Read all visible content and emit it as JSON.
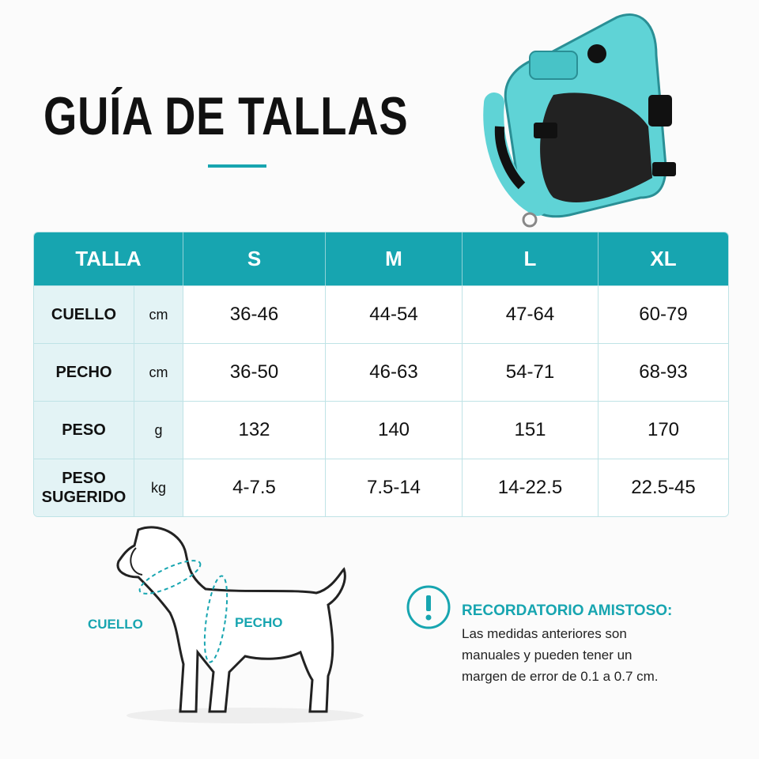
{
  "title": "GUÍA DE TALLAS",
  "table": {
    "header": [
      "TALLA",
      "S",
      "M",
      "L",
      "XL"
    ],
    "rows": [
      {
        "label": "CUELLO",
        "unit": "cm",
        "values": [
          "36-46",
          "44-54",
          "47-64",
          "60-79"
        ]
      },
      {
        "label": "PECHO",
        "unit": "cm",
        "values": [
          "36-50",
          "46-63",
          "54-71",
          "68-93"
        ]
      },
      {
        "label": "PESO",
        "unit": "g",
        "values": [
          "132",
          "140",
          "151",
          "170"
        ]
      },
      {
        "label": "PESO SUGERIDO",
        "unit": "kg",
        "values": [
          "4-7.5",
          "7.5-14",
          "14-22.5",
          "22.5-45"
        ]
      }
    ]
  },
  "diagram": {
    "neck_label": "CUELLO",
    "chest_label": "PECHO"
  },
  "note": {
    "title": "RECORDATORIO AMISTOSO:",
    "lines": [
      "Las medidas anteriores son",
      "manuales y pueden tener un",
      "margen de error de 0.1 a 0.7 cm."
    ]
  }
}
